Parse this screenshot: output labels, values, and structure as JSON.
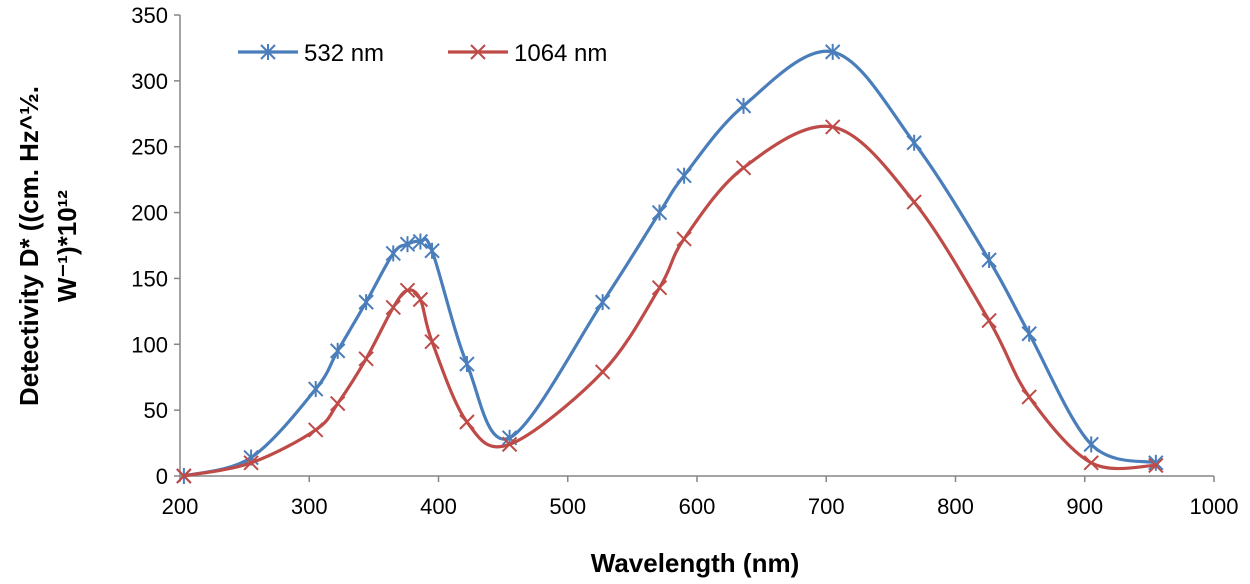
{
  "chart_data": {
    "type": "line",
    "title": "",
    "xlabel": "Wavelength (nm)",
    "ylabel_line1": "Detectivity D* ((cm. Hz^½.",
    "ylabel_line2": "W⁻¹)*10¹²",
    "xlim": [
      200,
      1000
    ],
    "ylim": [
      0,
      350
    ],
    "xticks": [
      200,
      300,
      400,
      500,
      600,
      700,
      800,
      900,
      1000
    ],
    "yticks": [
      0,
      50,
      100,
      150,
      200,
      250,
      300,
      350
    ],
    "grid": false,
    "legend_position": "top-left",
    "series": [
      {
        "name": "532 nm",
        "color": "#4a7ebb",
        "marker": "asterisk",
        "x": [
          203,
          255,
          305,
          322,
          344,
          365,
          376,
          386,
          395,
          422,
          455,
          527,
          571,
          590,
          636,
          705,
          768,
          826,
          857,
          905,
          955
        ],
        "y": [
          0,
          14,
          66,
          95,
          132,
          169,
          176,
          178,
          171,
          85,
          29,
          132,
          200,
          228,
          281,
          322,
          253,
          164,
          108,
          24,
          10
        ]
      },
      {
        "name": "1064 nm",
        "color": "#be4b48",
        "marker": "x",
        "x": [
          203,
          255,
          305,
          322,
          344,
          365,
          376,
          386,
          395,
          422,
          455,
          527,
          571,
          590,
          636,
          705,
          768,
          826,
          857,
          905,
          955
        ],
        "y": [
          0,
          10,
          35,
          55,
          89,
          128,
          141,
          134,
          102,
          41,
          24,
          79,
          143,
          180,
          234,
          265,
          208,
          118,
          60,
          10,
          8
        ]
      }
    ]
  }
}
